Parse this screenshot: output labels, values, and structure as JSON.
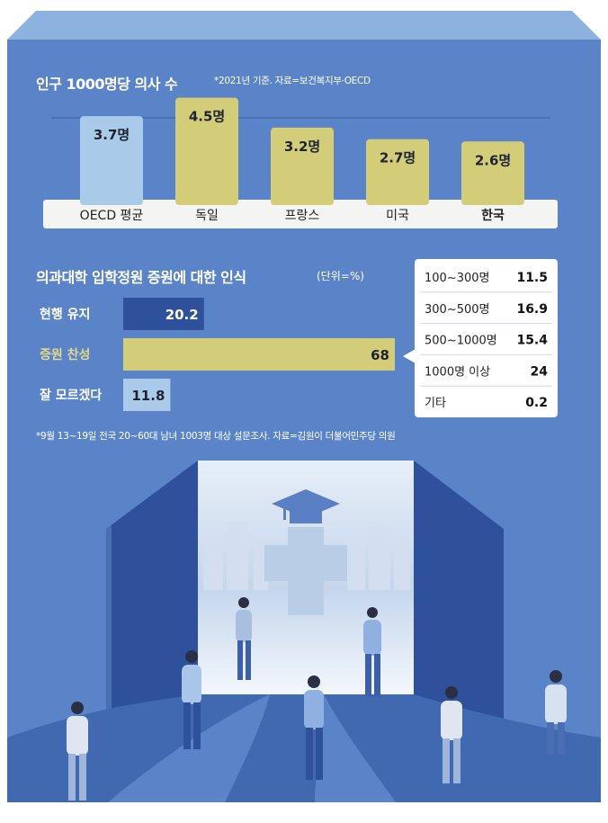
{
  "chart1": {
    "title": "인구 1000명당 의사 수",
    "note": "*2021년 기준. 자료=보건복지부·OECD"
  },
  "chart2": {
    "title": "의과대학 입학정원 증원에 대한 인식",
    "unit": "(단위=%)",
    "breakdown_rows": [
      {
        "label": "100~300명",
        "value": "11.5"
      },
      {
        "label": "300~500명",
        "value": "16.9"
      },
      {
        "label": "500~1000명",
        "value": "15.4"
      },
      {
        "label": "1000명 이상",
        "value": "24"
      },
      {
        "label": "기타",
        "value": "0.2"
      }
    ]
  },
  "footnote": "*9월 13~19일 전국 20~60대 남녀 1003명 대상 설문조사. 자료=김원이 더불어민주당 의원",
  "colors": {
    "background": "#5b84c8",
    "panel_top": "#8eb2df",
    "olive": "#d3cd7a",
    "light_blue": "#a9cbe9",
    "dark_blue": "#2f519c",
    "label_highlight": "#e2d98a"
  },
  "chart_data": [
    {
      "type": "bar",
      "title": "인구 1000명당 의사 수",
      "categories": [
        "OECD 평균",
        "독일",
        "프랑스",
        "미국",
        "한국"
      ],
      "values": [
        3.7,
        4.5,
        3.2,
        2.7,
        2.6
      ],
      "value_labels": [
        "3.7명",
        "4.5명",
        "3.2명",
        "2.7명",
        "2.6명"
      ],
      "bar_colors": [
        "#a9cbe9",
        "#d3cd7a",
        "#d3cd7a",
        "#d3cd7a",
        "#d3cd7a"
      ],
      "highlight_category": "한국",
      "ylim": [
        0,
        4.6
      ]
    },
    {
      "type": "bar",
      "orientation": "horizontal",
      "title": "의과대학 입학정원 증원에 대한 인식",
      "unit": "(단위=%)",
      "categories": [
        "현행 유지",
        "증원 찬성",
        "잘 모르겠다"
      ],
      "values": [
        20.2,
        68,
        11.8
      ],
      "value_labels": [
        "20.2",
        "68",
        "11.8"
      ],
      "bar_colors": [
        "#2f519c",
        "#d3cd7a",
        "#a9cbe9"
      ],
      "label_colors": [
        "#ffffff",
        "#e2d98a",
        "#ffffff"
      ],
      "xlim": [
        0,
        68
      ]
    }
  ]
}
